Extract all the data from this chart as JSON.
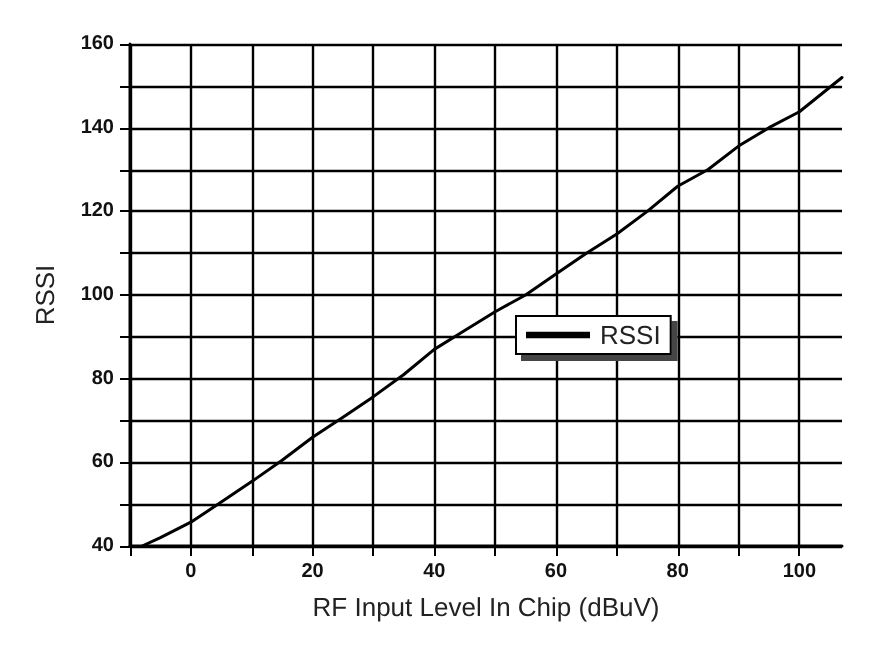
{
  "chart_data": {
    "type": "line",
    "xlabel": "RF Input Level In Chip (dBuV)",
    "ylabel": "RSSI",
    "xlim": [
      -10,
      107
    ],
    "ylim": [
      40,
      160
    ],
    "xticks": [
      {
        "value": -10,
        "label": null
      },
      0,
      {
        "value": 10,
        "label": null
      },
      20,
      {
        "value": 30,
        "label": null
      },
      40,
      {
        "value": 50,
        "label": null
      },
      60,
      {
        "value": 70,
        "label": null
      },
      80,
      {
        "value": 90,
        "label": null
      },
      100
    ],
    "yticks": [
      40,
      {
        "value": 50,
        "label": null
      },
      60,
      {
        "value": 70,
        "label": null
      },
      80,
      {
        "value": 90,
        "label": null
      },
      100,
      {
        "value": 110,
        "label": null
      },
      120,
      {
        "value": 130,
        "label": null
      },
      140,
      {
        "value": 150,
        "label": null
      },
      160
    ],
    "grid": true,
    "legend": "right",
    "marker": "none",
    "line_style": "solid",
    "series": [
      {
        "name": "RSSI",
        "color": "#000000",
        "x": [
          -8,
          -5,
          0,
          5,
          10,
          15,
          20,
          25,
          30,
          35,
          40,
          45,
          50,
          55,
          60,
          65,
          70,
          75,
          80,
          85,
          90,
          95,
          100,
          107
        ],
        "values": [
          40,
          42,
          45.7,
          50.5,
          55.4,
          60.5,
          66,
          70.8,
          75.7,
          81,
          87,
          91.5,
          96,
          100,
          105,
          110,
          114.6,
          120,
          126,
          130,
          135.6,
          140,
          143.8,
          152
        ]
      }
    ]
  }
}
